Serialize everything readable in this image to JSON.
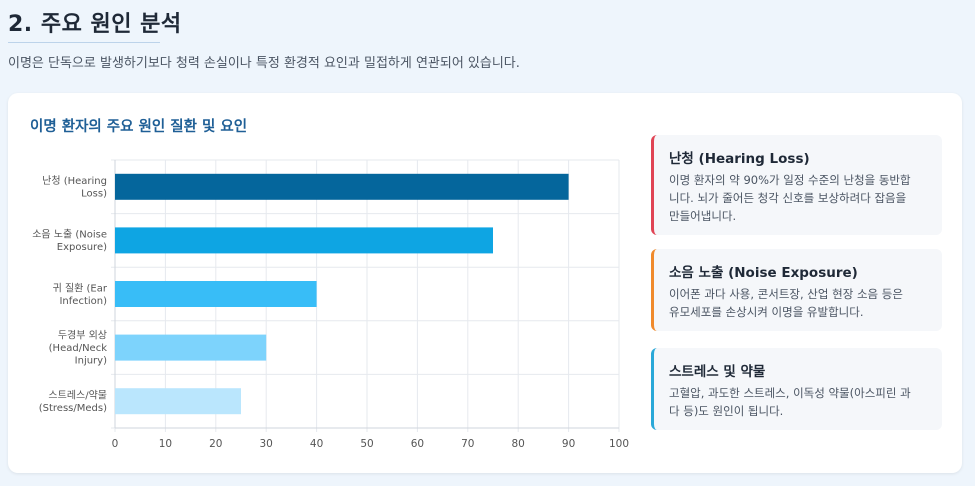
{
  "section": {
    "title": "2. 주요 원인 분석",
    "intro": "이명은 단독으로 발생하기보다 청력 손실이나 특정 환경적 요인과 밀접하게 연관되어 있습니다."
  },
  "chart_data": {
    "type": "bar",
    "orientation": "horizontal",
    "title": "이명 환자의 주요 원인 질환 및 요인",
    "categories": [
      [
        "난청 (Hearing",
        "Loss)"
      ],
      [
        "소음 노출 (Noise",
        "Exposure)"
      ],
      [
        "귀 질환 (Ear",
        "Infection)"
      ],
      [
        "두경부 외상",
        "(Head/Neck",
        "Injury)"
      ],
      [
        "스트레스/약물",
        "(Stress/Meds)"
      ]
    ],
    "values": [
      90,
      75,
      40,
      30,
      25
    ],
    "bar_colors": [
      "#05669c",
      "#0ea5e3",
      "#38bdf7",
      "#7dd3fc",
      "#bae6fd"
    ],
    "xlim": [
      0,
      100
    ],
    "xticks": [
      0,
      10,
      20,
      30,
      40,
      50,
      60,
      70,
      80,
      90,
      100
    ],
    "grid": true
  },
  "info_cards": [
    {
      "title": "난청 (Hearing Loss)",
      "lines": [
        "이명 환자의 약 90%가 일정 수준의 난청을 동반합",
        "니다. 뇌가 줄어든 청각 신호를 보상하려다 잡음을",
        "만들어냅니다."
      ],
      "accent": "#e04454"
    },
    {
      "title": "소음 노출 (Noise Exposure)",
      "lines": [
        "이어폰 과다 사용, 콘서트장, 산업 현장 소음 등은",
        "유모세포를 손상시켜 이명을 유발합니다."
      ],
      "accent": "#f08a2c"
    },
    {
      "title": "스트레스 및 약물",
      "lines": [
        "고혈압, 과도한 스트레스, 이독성 약물(아스피린 과",
        "다 등)도 원인이 됩니다."
      ],
      "accent": "#2aa8d8"
    }
  ]
}
